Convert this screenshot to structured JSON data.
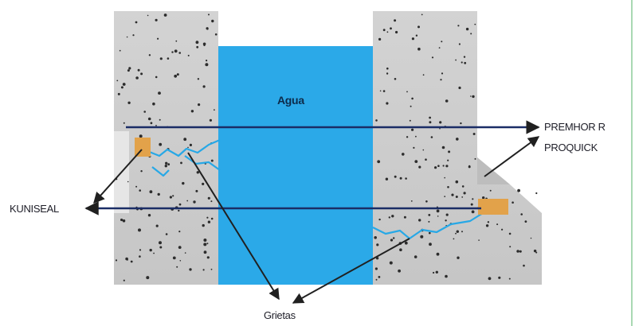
{
  "labels": {
    "water": "Agua",
    "premhor": "PREMHOR R",
    "proquick": "PROQUICK",
    "kuniseal": "KUNISEAL",
    "cracks": "Grietas"
  },
  "colors": {
    "concrete": "#cfcfcf",
    "concrete_shadow": "#b8b8b8",
    "concrete_dots": "#2c2c2c",
    "water": "#2ba9e8",
    "crack": "#27a8e6",
    "seal": "#e2a24a",
    "arrow_blue": "#1b2d66",
    "arrow_dark": "#202020"
  }
}
